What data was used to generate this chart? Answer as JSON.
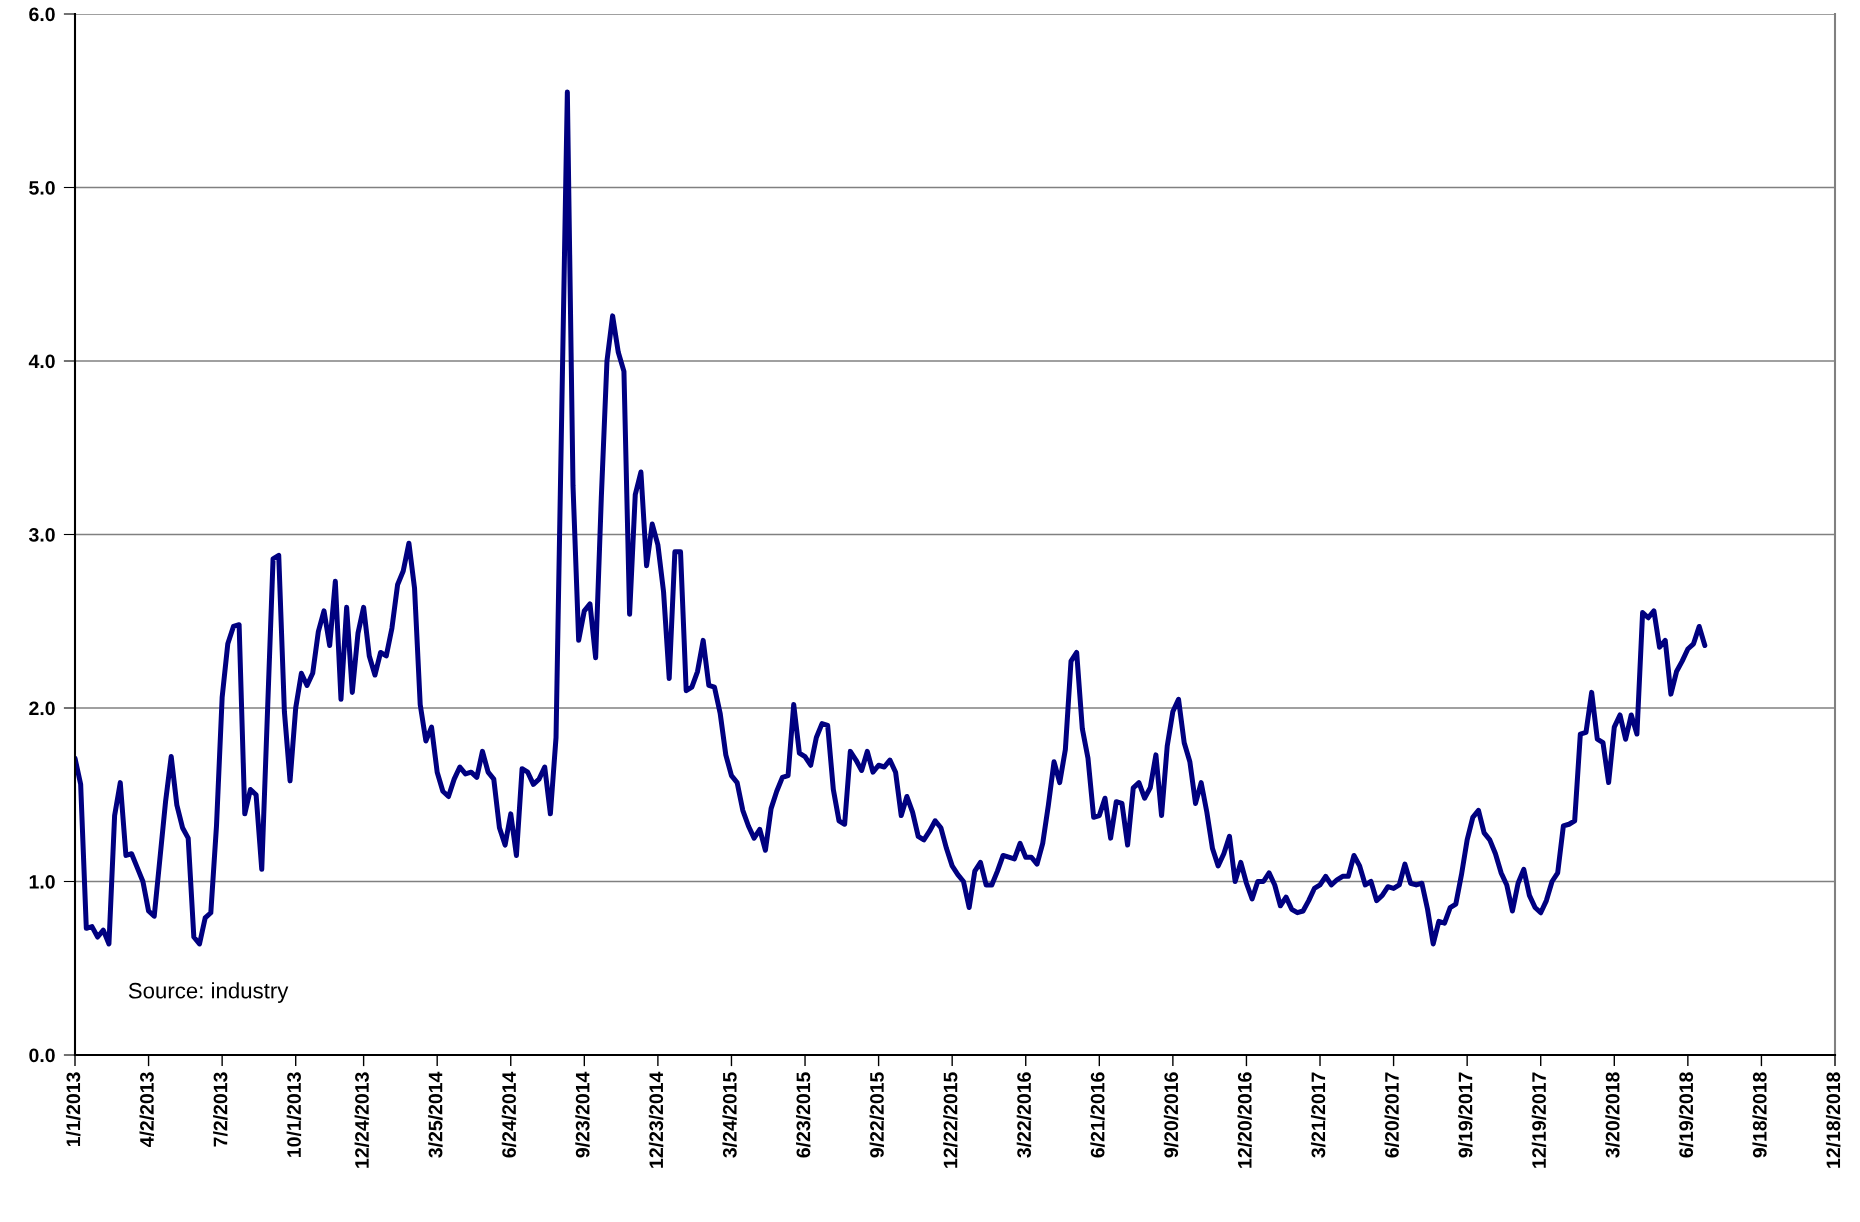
{
  "chart_data": {
    "type": "line",
    "annotations": [
      "Source: industry"
    ],
    "xlim": [
      "2013-01-01",
      "2018-12-18"
    ],
    "xticks": [
      {
        "value": "2013-01-01",
        "label": "1/1/2013"
      },
      {
        "value": "2013-04-02",
        "label": "4/2/2013"
      },
      {
        "value": "2013-07-02",
        "label": "7/2/2013"
      },
      {
        "value": "2013-10-01",
        "label": "10/1/2013"
      },
      {
        "value": "2013-12-24",
        "label": "12/24/2013"
      },
      {
        "value": "2014-03-25",
        "label": "3/25/2014"
      },
      {
        "value": "2014-06-24",
        "label": "6/24/2014"
      },
      {
        "value": "2014-09-23",
        "label": "9/23/2014"
      },
      {
        "value": "2014-12-23",
        "label": "12/23/2014"
      },
      {
        "value": "2015-03-24",
        "label": "3/24/2015"
      },
      {
        "value": "2015-06-23",
        "label": "6/23/2015"
      },
      {
        "value": "2015-09-22",
        "label": "9/22/2015"
      },
      {
        "value": "2015-12-22",
        "label": "12/22/2015"
      },
      {
        "value": "2016-03-22",
        "label": "3/22/2016"
      },
      {
        "value": "2016-06-21",
        "label": "6/21/2016"
      },
      {
        "value": "2016-09-20",
        "label": "9/20/2016"
      },
      {
        "value": "2016-12-20",
        "label": "12/20/2016"
      },
      {
        "value": "2017-03-21",
        "label": "3/21/2017"
      },
      {
        "value": "2017-06-20",
        "label": "6/20/2017"
      },
      {
        "value": "2017-09-19",
        "label": "9/19/2017"
      },
      {
        "value": "2017-12-19",
        "label": "12/19/2017"
      },
      {
        "value": "2018-03-20",
        "label": "3/20/2018"
      },
      {
        "value": "2018-06-19",
        "label": "6/19/2018"
      },
      {
        "value": "2018-09-18",
        "label": "9/18/2018"
      },
      {
        "value": "2018-12-18",
        "label": "12/18/2018"
      }
    ],
    "ylim": [
      0,
      6
    ],
    "yticks": [
      {
        "value": 0,
        "label": "0.0"
      },
      {
        "value": 1,
        "label": "1.0"
      },
      {
        "value": 2,
        "label": "2.0"
      },
      {
        "value": 3,
        "label": "3.0"
      },
      {
        "value": 4,
        "label": "4.0"
      },
      {
        "value": 5,
        "label": "5.0"
      },
      {
        "value": 6,
        "label": "6.0"
      }
    ],
    "grid": "y",
    "marker": "none",
    "line_style": "solid",
    "series": [
      {
        "color": "#000080",
        "x": [
          "2013-01-01",
          "2013-01-08",
          "2013-01-15",
          "2013-01-22",
          "2013-01-29",
          "2013-02-05",
          "2013-02-12",
          "2013-02-19",
          "2013-02-26",
          "2013-03-05",
          "2013-03-12",
          "2013-03-19",
          "2013-03-26",
          "2013-04-02",
          "2013-04-09",
          "2013-04-23",
          "2013-04-30",
          "2013-05-07",
          "2013-05-14",
          "2013-05-21",
          "2013-05-28",
          "2013-06-04",
          "2013-06-11",
          "2013-06-18",
          "2013-06-25",
          "2013-07-02",
          "2013-07-09",
          "2013-07-16",
          "2013-07-23",
          "2013-07-30",
          "2013-08-06",
          "2013-08-13",
          "2013-08-20",
          "2013-09-03",
          "2013-09-10",
          "2013-09-17",
          "2013-09-24",
          "2013-10-01",
          "2013-10-08",
          "2013-10-15",
          "2013-10-22",
          "2013-10-29",
          "2013-11-05",
          "2013-11-12",
          "2013-11-19",
          "2013-11-26",
          "2013-12-03",
          "2013-12-10",
          "2013-12-17",
          "2013-12-24",
          "2013-12-31",
          "2014-01-07",
          "2014-01-14",
          "2014-01-21",
          "2014-01-28",
          "2014-02-04",
          "2014-02-11",
          "2014-02-18",
          "2014-02-25",
          "2014-03-04",
          "2014-03-11",
          "2014-03-18",
          "2014-03-25",
          "2014-04-01",
          "2014-04-08",
          "2014-04-15",
          "2014-04-22",
          "2014-04-29",
          "2014-05-06",
          "2014-05-13",
          "2014-05-20",
          "2014-05-27",
          "2014-06-03",
          "2014-06-10",
          "2014-06-17",
          "2014-06-24",
          "2014-07-01",
          "2014-07-08",
          "2014-07-15",
          "2014-07-22",
          "2014-07-29",
          "2014-08-05",
          "2014-08-12",
          "2014-08-19",
          "2014-08-26",
          "2014-09-02",
          "2014-09-09",
          "2014-09-16",
          "2014-09-23",
          "2014-09-30",
          "2014-10-07",
          "2014-10-14",
          "2014-10-21",
          "2014-10-28",
          "2014-11-04",
          "2014-11-11",
          "2014-11-18",
          "2014-11-25",
          "2014-12-02",
          "2014-12-09",
          "2014-12-16",
          "2014-12-23",
          "2014-12-30",
          "2015-01-06",
          "2015-01-13",
          "2015-01-20",
          "2015-01-27",
          "2015-02-03",
          "2015-02-10",
          "2015-02-17",
          "2015-02-24",
          "2015-03-03",
          "2015-03-10",
          "2015-03-17",
          "2015-03-24",
          "2015-03-31",
          "2015-04-07",
          "2015-04-14",
          "2015-04-21",
          "2015-04-28",
          "2015-05-05",
          "2015-05-12",
          "2015-05-19",
          "2015-05-26",
          "2015-06-02",
          "2015-06-09",
          "2015-06-16",
          "2015-06-23",
          "2015-06-30",
          "2015-07-07",
          "2015-07-14",
          "2015-07-21",
          "2015-07-28",
          "2015-08-04",
          "2015-08-11",
          "2015-08-18",
          "2015-08-25",
          "2015-09-01",
          "2015-09-08",
          "2015-09-15",
          "2015-09-22",
          "2015-09-29",
          "2015-10-06",
          "2015-10-13",
          "2015-10-20",
          "2015-10-27",
          "2015-11-03",
          "2015-11-10",
          "2015-11-17",
          "2015-11-24",
          "2015-12-01",
          "2015-12-08",
          "2015-12-15",
          "2015-12-22",
          "2015-12-29",
          "2016-01-05",
          "2016-01-12",
          "2016-01-19",
          "2016-01-26",
          "2016-02-02",
          "2016-02-09",
          "2016-02-16",
          "2016-02-23",
          "2016-03-01",
          "2016-03-08",
          "2016-03-15",
          "2016-03-22",
          "2016-03-29",
          "2016-04-05",
          "2016-04-12",
          "2016-04-19",
          "2016-04-26",
          "2016-05-03",
          "2016-05-10",
          "2016-05-17",
          "2016-05-24",
          "2016-05-31",
          "2016-06-07",
          "2016-06-14",
          "2016-06-21",
          "2016-06-28",
          "2016-07-05",
          "2016-07-12",
          "2016-07-19",
          "2016-07-26",
          "2016-08-02",
          "2016-08-09",
          "2016-08-16",
          "2016-08-23",
          "2016-08-30",
          "2016-09-06",
          "2016-09-13",
          "2016-09-20",
          "2016-09-27",
          "2016-10-04",
          "2016-10-11",
          "2016-10-18",
          "2016-10-25",
          "2016-11-01",
          "2016-11-08",
          "2016-11-15",
          "2016-11-22",
          "2016-11-29",
          "2016-12-06",
          "2016-12-13",
          "2016-12-20",
          "2016-12-27",
          "2017-01-03",
          "2017-01-10",
          "2017-01-17",
          "2017-01-24",
          "2017-01-31",
          "2017-02-07",
          "2017-02-14",
          "2017-02-21",
          "2017-02-28",
          "2017-03-07",
          "2017-03-14",
          "2017-03-21",
          "2017-03-28",
          "2017-04-04",
          "2017-04-11",
          "2017-04-18",
          "2017-04-25",
          "2017-05-02",
          "2017-05-09",
          "2017-05-16",
          "2017-05-23",
          "2017-05-30",
          "2017-06-06",
          "2017-06-13",
          "2017-06-20",
          "2017-06-27",
          "2017-07-04",
          "2017-07-11",
          "2017-07-18",
          "2017-07-25",
          "2017-08-01",
          "2017-08-08",
          "2017-08-15",
          "2017-08-22",
          "2017-08-29",
          "2017-09-05",
          "2017-09-12",
          "2017-09-19",
          "2017-09-26",
          "2017-10-03",
          "2017-10-10",
          "2017-10-17",
          "2017-10-24",
          "2017-10-31",
          "2017-11-07",
          "2017-11-14",
          "2017-11-21",
          "2017-11-28",
          "2017-12-05",
          "2017-12-12",
          "2017-12-19",
          "2017-12-26",
          "2018-01-02",
          "2018-01-09",
          "2018-01-16",
          "2018-01-23",
          "2018-01-30",
          "2018-02-06",
          "2018-02-13",
          "2018-02-20",
          "2018-02-27",
          "2018-03-06",
          "2018-03-13",
          "2018-03-20",
          "2018-03-27",
          "2018-04-03",
          "2018-04-10",
          "2018-04-17",
          "2018-04-24",
          "2018-05-01",
          "2018-05-08",
          "2018-05-15",
          "2018-05-22",
          "2018-05-29",
          "2018-06-05",
          "2018-06-12",
          "2018-06-19",
          "2018-06-26",
          "2018-07-03",
          "2018-07-10"
        ],
        "values": [
          1.71,
          1.56,
          0.73,
          0.74,
          0.68,
          0.72,
          0.64,
          1.38,
          1.57,
          1.15,
          1.16,
          1.08,
          1.0,
          0.83,
          0.8,
          1.46,
          1.72,
          1.44,
          1.31,
          1.25,
          0.68,
          0.64,
          0.79,
          0.82,
          1.32,
          2.06,
          2.37,
          2.47,
          2.48,
          1.39,
          1.53,
          1.5,
          1.07,
          2.86,
          2.88,
          1.98,
          1.58,
          2.0,
          2.2,
          2.13,
          2.2,
          2.44,
          2.56,
          2.36,
          2.73,
          2.05,
          2.58,
          2.09,
          2.43,
          2.58,
          2.3,
          2.19,
          2.32,
          2.3,
          2.46,
          2.71,
          2.79,
          2.95,
          2.69,
          2.02,
          1.81,
          1.89,
          1.63,
          1.52,
          1.49,
          1.59,
          1.66,
          1.62,
          1.63,
          1.6,
          1.75,
          1.63,
          1.59,
          1.31,
          1.21,
          1.39,
          1.15,
          1.65,
          1.63,
          1.56,
          1.59,
          1.66,
          1.39,
          1.83,
          3.69,
          5.55,
          3.28,
          2.39,
          2.56,
          2.6,
          2.29,
          3.21,
          4.0,
          4.26,
          4.05,
          3.94,
          2.54,
          3.23,
          3.36,
          2.82,
          3.06,
          2.94,
          2.67,
          2.17,
          2.9,
          2.9,
          2.1,
          2.12,
          2.21,
          2.39,
          2.13,
          2.12,
          1.97,
          1.73,
          1.61,
          1.57,
          1.41,
          1.32,
          1.25,
          1.3,
          1.18,
          1.42,
          1.52,
          1.6,
          1.61,
          2.02,
          1.74,
          1.72,
          1.67,
          1.83,
          1.91,
          1.9,
          1.53,
          1.35,
          1.33,
          1.75,
          1.7,
          1.64,
          1.75,
          1.63,
          1.67,
          1.66,
          1.7,
          1.63,
          1.38,
          1.49,
          1.4,
          1.26,
          1.24,
          1.29,
          1.35,
          1.31,
          1.19,
          1.09,
          1.04,
          1.0,
          0.85,
          1.06,
          1.11,
          0.98,
          0.98,
          1.06,
          1.15,
          1.14,
          1.13,
          1.22,
          1.14,
          1.14,
          1.1,
          1.22,
          1.44,
          1.69,
          1.57,
          1.76,
          2.27,
          2.32,
          1.88,
          1.71,
          1.37,
          1.38,
          1.48,
          1.25,
          1.46,
          1.45,
          1.21,
          1.54,
          1.57,
          1.48,
          1.54,
          1.73,
          1.38,
          1.78,
          1.98,
          2.05,
          1.8,
          1.69,
          1.45,
          1.57,
          1.4,
          1.19,
          1.09,
          1.16,
          1.26,
          1.0,
          1.11,
          0.99,
          0.9,
          1.0,
          1.0,
          1.05,
          0.98,
          0.86,
          0.91,
          0.84,
          0.82,
          0.83,
          0.89,
          0.96,
          0.98,
          1.03,
          0.98,
          1.01,
          1.03,
          1.03,
          1.15,
          1.09,
          0.98,
          1.0,
          0.89,
          0.92,
          0.97,
          0.96,
          0.98,
          1.1,
          0.99,
          0.98,
          0.99,
          0.84,
          0.64,
          0.77,
          0.76,
          0.85,
          0.87,
          1.04,
          1.24,
          1.37,
          1.41,
          1.28,
          1.24,
          1.16,
          1.05,
          0.98,
          0.83,
          0.99,
          1.07,
          0.92,
          0.85,
          0.82,
          0.89,
          1.0,
          1.05,
          1.32,
          1.33,
          1.35,
          1.85,
          1.86,
          2.09,
          1.82,
          1.8,
          1.57,
          1.89,
          1.96,
          1.82,
          1.96,
          1.85,
          2.55,
          2.52,
          2.56,
          2.35,
          2.39,
          2.08,
          2.21,
          2.27,
          2.34,
          2.37,
          2.47,
          2.36
        ]
      }
    ]
  }
}
